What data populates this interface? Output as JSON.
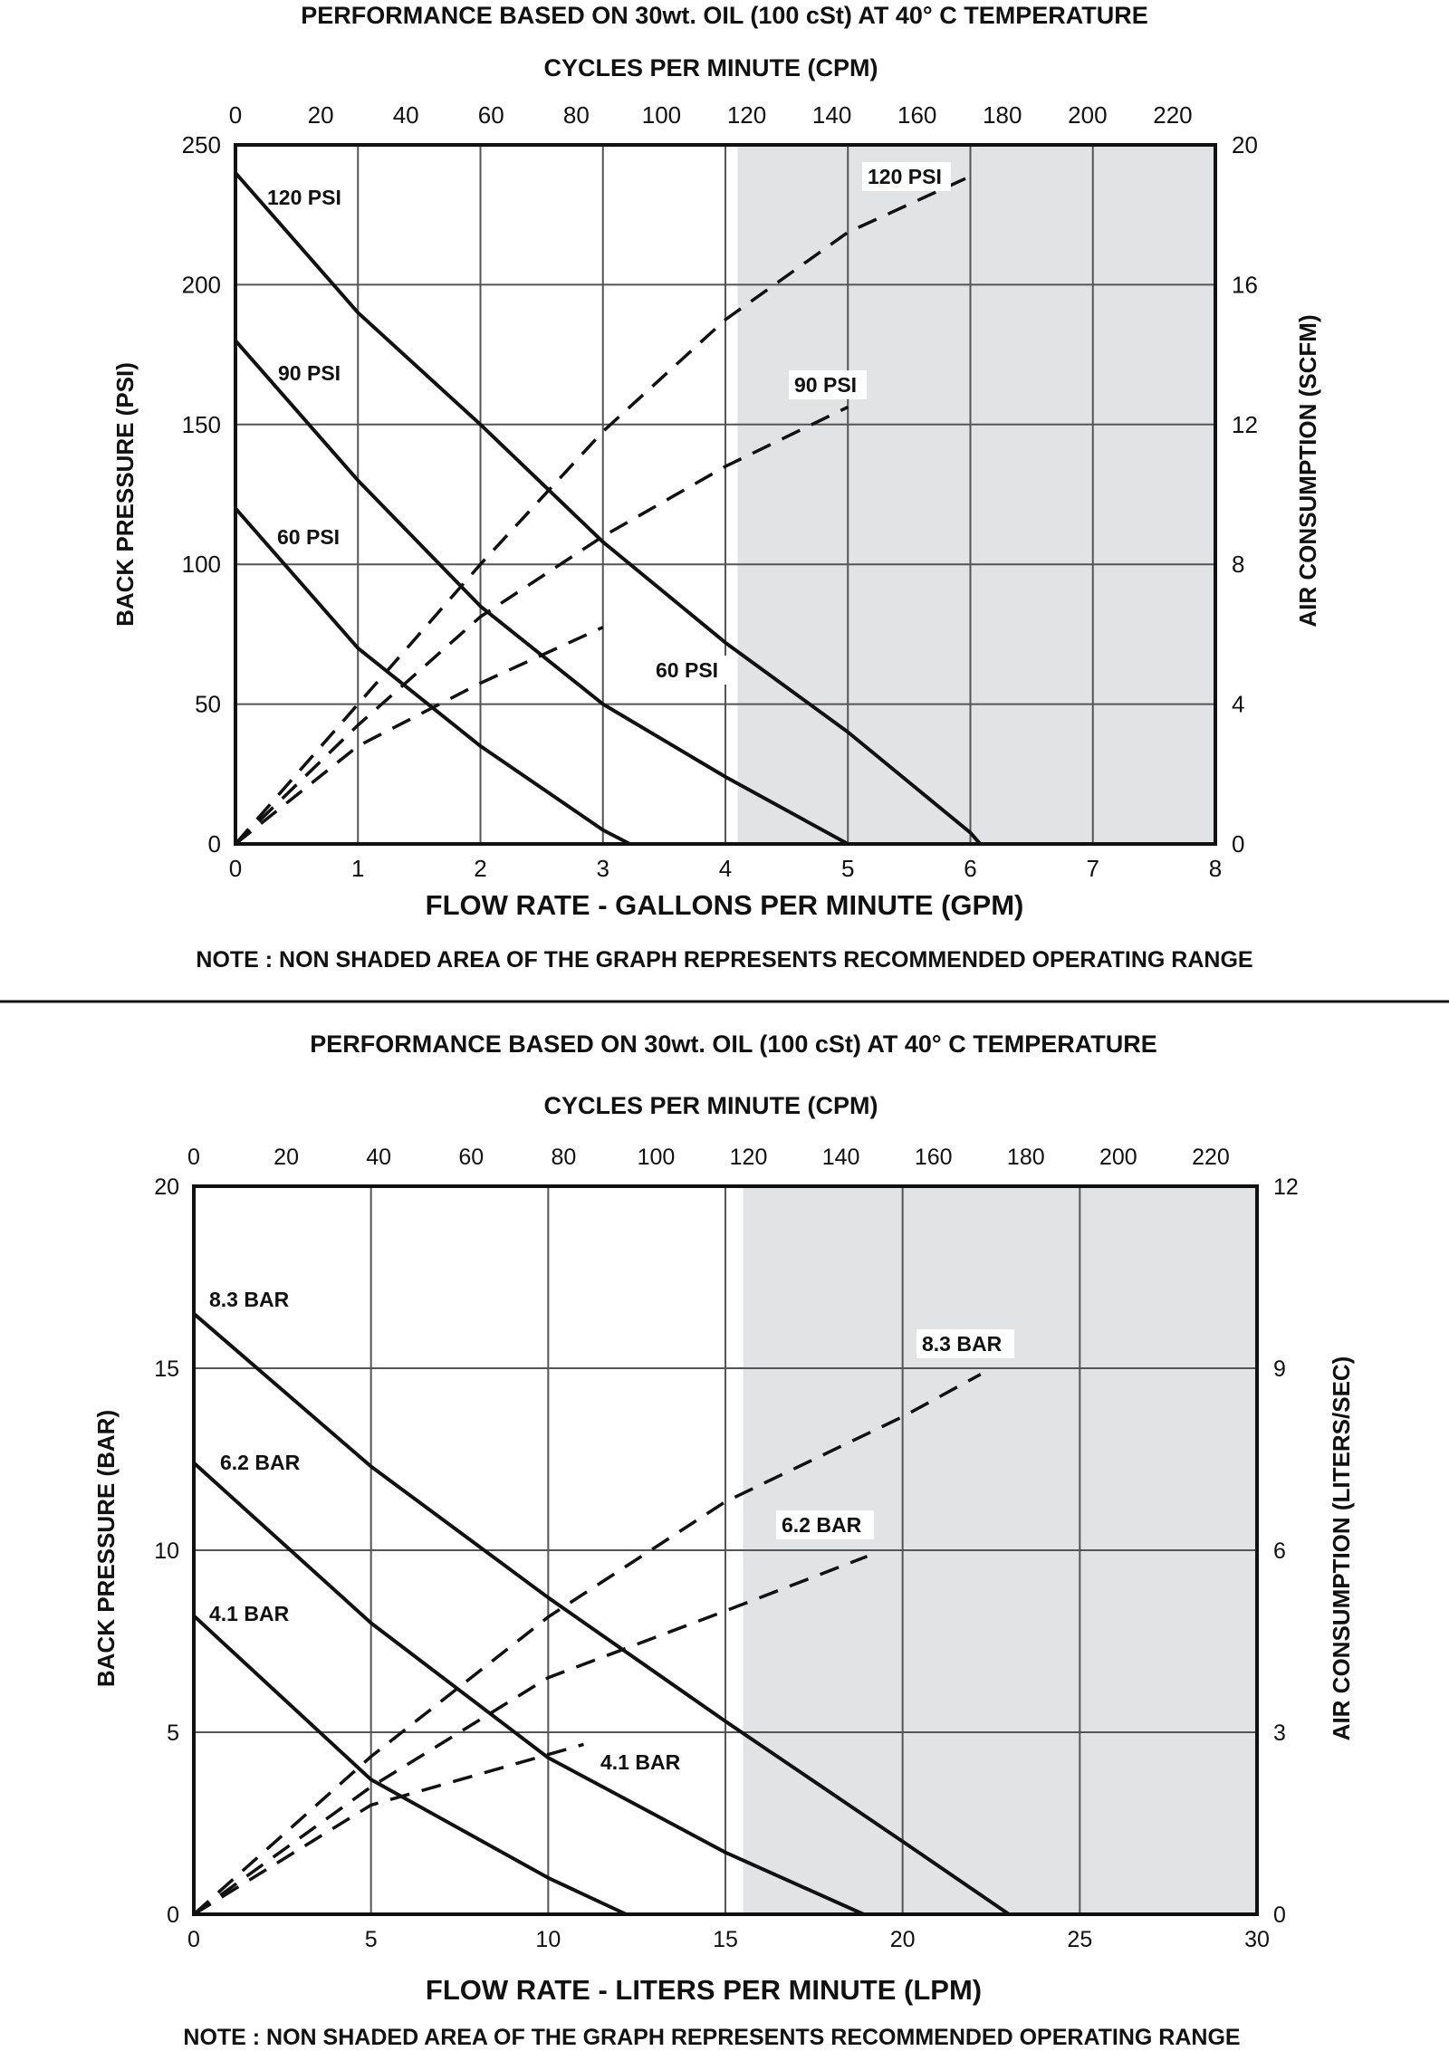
{
  "chart_data": [
    {
      "type": "line",
      "title": "PERFORMANCE  BASED ON 30wt. OIL (100 cSt) AT 40° C TEMPERATURE",
      "top_xlabel": "CYCLES PER MINUTE (CPM)",
      "xlabel": "FLOW RATE - GALLONS PER MINUTE (GPM)",
      "ylabel": "BACK PRESSURE  (PSI)",
      "y2label": "AIR CONSUMPTION  (SCFM)",
      "note": "NOTE : NON SHADED AREA OF THE GRAPH REPRESENTS RECOMMENDED OPERATING RANGE",
      "xlim": [
        0,
        8
      ],
      "ylim": [
        0,
        250
      ],
      "y2lim": [
        0,
        20
      ],
      "top_xlim": [
        0,
        230
      ],
      "x_ticks": [
        "0",
        "1",
        "2",
        "3",
        "4",
        "5",
        "6",
        "7",
        "8"
      ],
      "y_ticks": [
        "0",
        "50",
        "100",
        "150",
        "200",
        "250"
      ],
      "y2_ticks": [
        "0",
        "4",
        "8",
        "12",
        "16",
        "20"
      ],
      "top_ticks": [
        "0",
        "20",
        "40",
        "60",
        "80",
        "100",
        "120",
        "140",
        "160",
        "180",
        "200",
        "220"
      ],
      "shaded_from_x": 4.1,
      "grid": true,
      "pressure_series": [
        {
          "name": "120 PSI",
          "points": [
            [
              0,
              240
            ],
            [
              1,
              190
            ],
            [
              2,
              150
            ],
            [
              3,
              108
            ],
            [
              4,
              72
            ],
            [
              5,
              40
            ],
            [
              6,
              4
            ],
            [
              6.08,
              0
            ]
          ]
        },
        {
          "name": "90 PSI",
          "points": [
            [
              0,
              180
            ],
            [
              1,
              130
            ],
            [
              2,
              85
            ],
            [
              3,
              50
            ],
            [
              4,
              24
            ],
            [
              5,
              0
            ]
          ]
        },
        {
          "name": "60 PSI",
          "points": [
            [
              0,
              120
            ],
            [
              1,
              70
            ],
            [
              2,
              35
            ],
            [
              3,
              5
            ],
            [
              3.22,
              0
            ]
          ]
        }
      ],
      "air_series": [
        {
          "name": "120 PSI",
          "points": [
            [
              0,
              0
            ],
            [
              1,
              4
            ],
            [
              2,
              8
            ],
            [
              3,
              11.8
            ],
            [
              4,
              15
            ],
            [
              5,
              17.5
            ],
            [
              6,
              19.1
            ]
          ]
        },
        {
          "name": "90 PSI",
          "points": [
            [
              0,
              0
            ],
            [
              1,
              3.4
            ],
            [
              2,
              6.5
            ],
            [
              3,
              8.8
            ],
            [
              4,
              10.8
            ],
            [
              5,
              12.5
            ]
          ]
        },
        {
          "name": "60 PSI",
          "points": [
            [
              0,
              0
            ],
            [
              1,
              2.8
            ],
            [
              2,
              4.6
            ],
            [
              3,
              6.2
            ]
          ]
        }
      ],
      "pressure_labels": [
        "120 PSI",
        "90 PSI",
        "60 PSI"
      ],
      "air_labels": [
        "120 PSI",
        "90 PSI",
        "60 PSI"
      ]
    },
    {
      "type": "line",
      "title": "PERFORMANCE  BASED ON 30wt. OIL (100 cSt) AT 40° C TEMPERATURE",
      "top_xlabel": "CYCLES PER MINUTE (CPM)",
      "xlabel": "FLOW RATE - LITERS PER MINUTE (LPM)",
      "ylabel": "BACK PRESSURE  (BAR)",
      "y2label": "AIR CONSUMPTION  (LITERS/SEC)",
      "note": "NOTE : NON SHADED AREA OF THE GRAPH REPRESENTS RECOMMENDED OPERATING RANGE",
      "xlim": [
        0,
        30
      ],
      "ylim": [
        0,
        20
      ],
      "y2lim": [
        0,
        12
      ],
      "top_xlim": [
        0,
        230
      ],
      "x_ticks": [
        "0",
        "5",
        "10",
        "15",
        "20",
        "25",
        "30"
      ],
      "y_ticks": [
        "0",
        "5",
        "10",
        "15",
        "20"
      ],
      "y2_ticks": [
        "0",
        "3",
        "6",
        "9",
        "12"
      ],
      "top_ticks": [
        "0",
        "20",
        "40",
        "60",
        "80",
        "100",
        "120",
        "140",
        "160",
        "180",
        "200",
        "220"
      ],
      "shaded_from_x": 15.5,
      "grid": true,
      "pressure_series": [
        {
          "name": "8.3 BAR",
          "points": [
            [
              0,
              16.5
            ],
            [
              5,
              12.3
            ],
            [
              10,
              8.7
            ],
            [
              15,
              5.3
            ],
            [
              20,
              2
            ],
            [
              23,
              0
            ]
          ]
        },
        {
          "name": "6.2 BAR",
          "points": [
            [
              0,
              12.4
            ],
            [
              5,
              8
            ],
            [
              10,
              4.3
            ],
            [
              15,
              1.7
            ],
            [
              18.9,
              0
            ]
          ]
        },
        {
          "name": "4.1 BAR",
          "points": [
            [
              0,
              8.2
            ],
            [
              5,
              3.7
            ],
            [
              10,
              1
            ],
            [
              12.2,
              0
            ]
          ]
        }
      ],
      "air_series": [
        {
          "name": "8.3 BAR",
          "points": [
            [
              0,
              0
            ],
            [
              5,
              2.6
            ],
            [
              10,
              4.9
            ],
            [
              15,
              6.8
            ],
            [
              20,
              8.2
            ],
            [
              22.2,
              8.9
            ]
          ]
        },
        {
          "name": "6.2 BAR",
          "points": [
            [
              0,
              0
            ],
            [
              5,
              2.1
            ],
            [
              10,
              3.9
            ],
            [
              15,
              5
            ],
            [
              19,
              5.9
            ]
          ]
        },
        {
          "name": "4.1 BAR",
          "points": [
            [
              0,
              0
            ],
            [
              5,
              1.8
            ],
            [
              8,
              2.3
            ],
            [
              11,
              2.8
            ]
          ]
        }
      ],
      "pressure_labels": [
        "8.3 BAR",
        "6.2 BAR",
        "4.1 BAR"
      ],
      "air_labels": [
        "8.3 BAR",
        "6.2 BAR",
        "4.1 BAR"
      ]
    }
  ]
}
